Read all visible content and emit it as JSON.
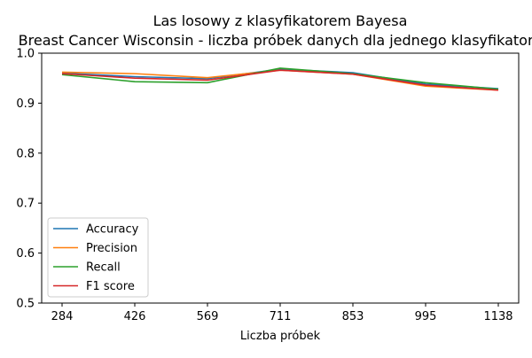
{
  "chart_data": {
    "type": "line",
    "title": "Las losowy z klasyfikatorem Bayesa",
    "subtitle": "Breast Cancer Wisconsin - liczba próbek danych dla jednego klasyfikatora",
    "xlabel": "Liczba próbek",
    "ylabel": "",
    "categories": [
      "284",
      "426",
      "569",
      "711",
      "853",
      "995",
      "1138"
    ],
    "ylim": [
      0.5,
      1.0
    ],
    "yticks": [
      "0.5",
      "0.6",
      "0.7",
      "0.8",
      "0.9",
      "1.0"
    ],
    "grid": false,
    "legend_position": "lower-left",
    "series": [
      {
        "name": "Accuracy",
        "color": "#1f77b4",
        "values": [
          0.96,
          0.953,
          0.949,
          0.968,
          0.961,
          0.938,
          0.929
        ]
      },
      {
        "name": "Precision",
        "color": "#ff7f0e",
        "values": [
          0.962,
          0.959,
          0.951,
          0.966,
          0.958,
          0.934,
          0.926
        ]
      },
      {
        "name": "Recall",
        "color": "#2ca02c",
        "values": [
          0.957,
          0.943,
          0.941,
          0.97,
          0.959,
          0.941,
          0.928
        ]
      },
      {
        "name": "F1 score",
        "color": "#d62728",
        "values": [
          0.959,
          0.95,
          0.946,
          0.966,
          0.958,
          0.936,
          0.926
        ]
      }
    ]
  }
}
